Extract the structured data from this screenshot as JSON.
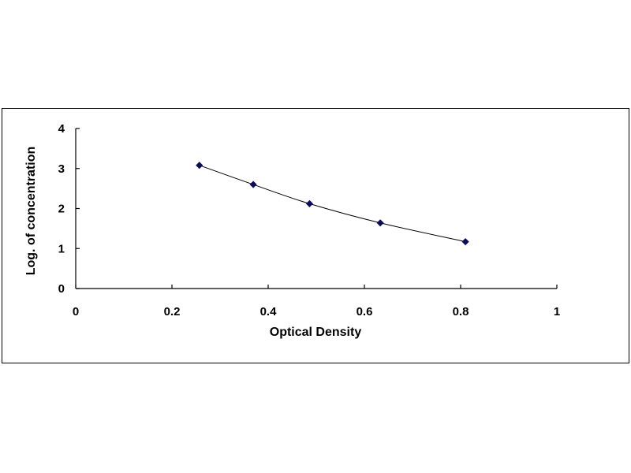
{
  "chart_data": {
    "type": "scatter",
    "title": "",
    "xlabel": "Optical Density",
    "ylabel": "Log. of concentration",
    "xlim": [
      0,
      1
    ],
    "ylim": [
      0,
      4
    ],
    "x_ticks": [
      "0",
      "0.2",
      "0.4",
      "0.6",
      "0.8",
      "1"
    ],
    "y_ticks": [
      "0",
      "1",
      "2",
      "3",
      "4"
    ],
    "grid": false,
    "legend": "none",
    "series": [
      {
        "x": [
          0.257,
          0.369,
          0.486,
          0.633,
          0.81
        ],
        "y": [
          3.08,
          2.6,
          2.12,
          1.64,
          1.17
        ],
        "line": "smooth",
        "marker": "diamond",
        "color": "#0d0d5e"
      }
    ]
  }
}
